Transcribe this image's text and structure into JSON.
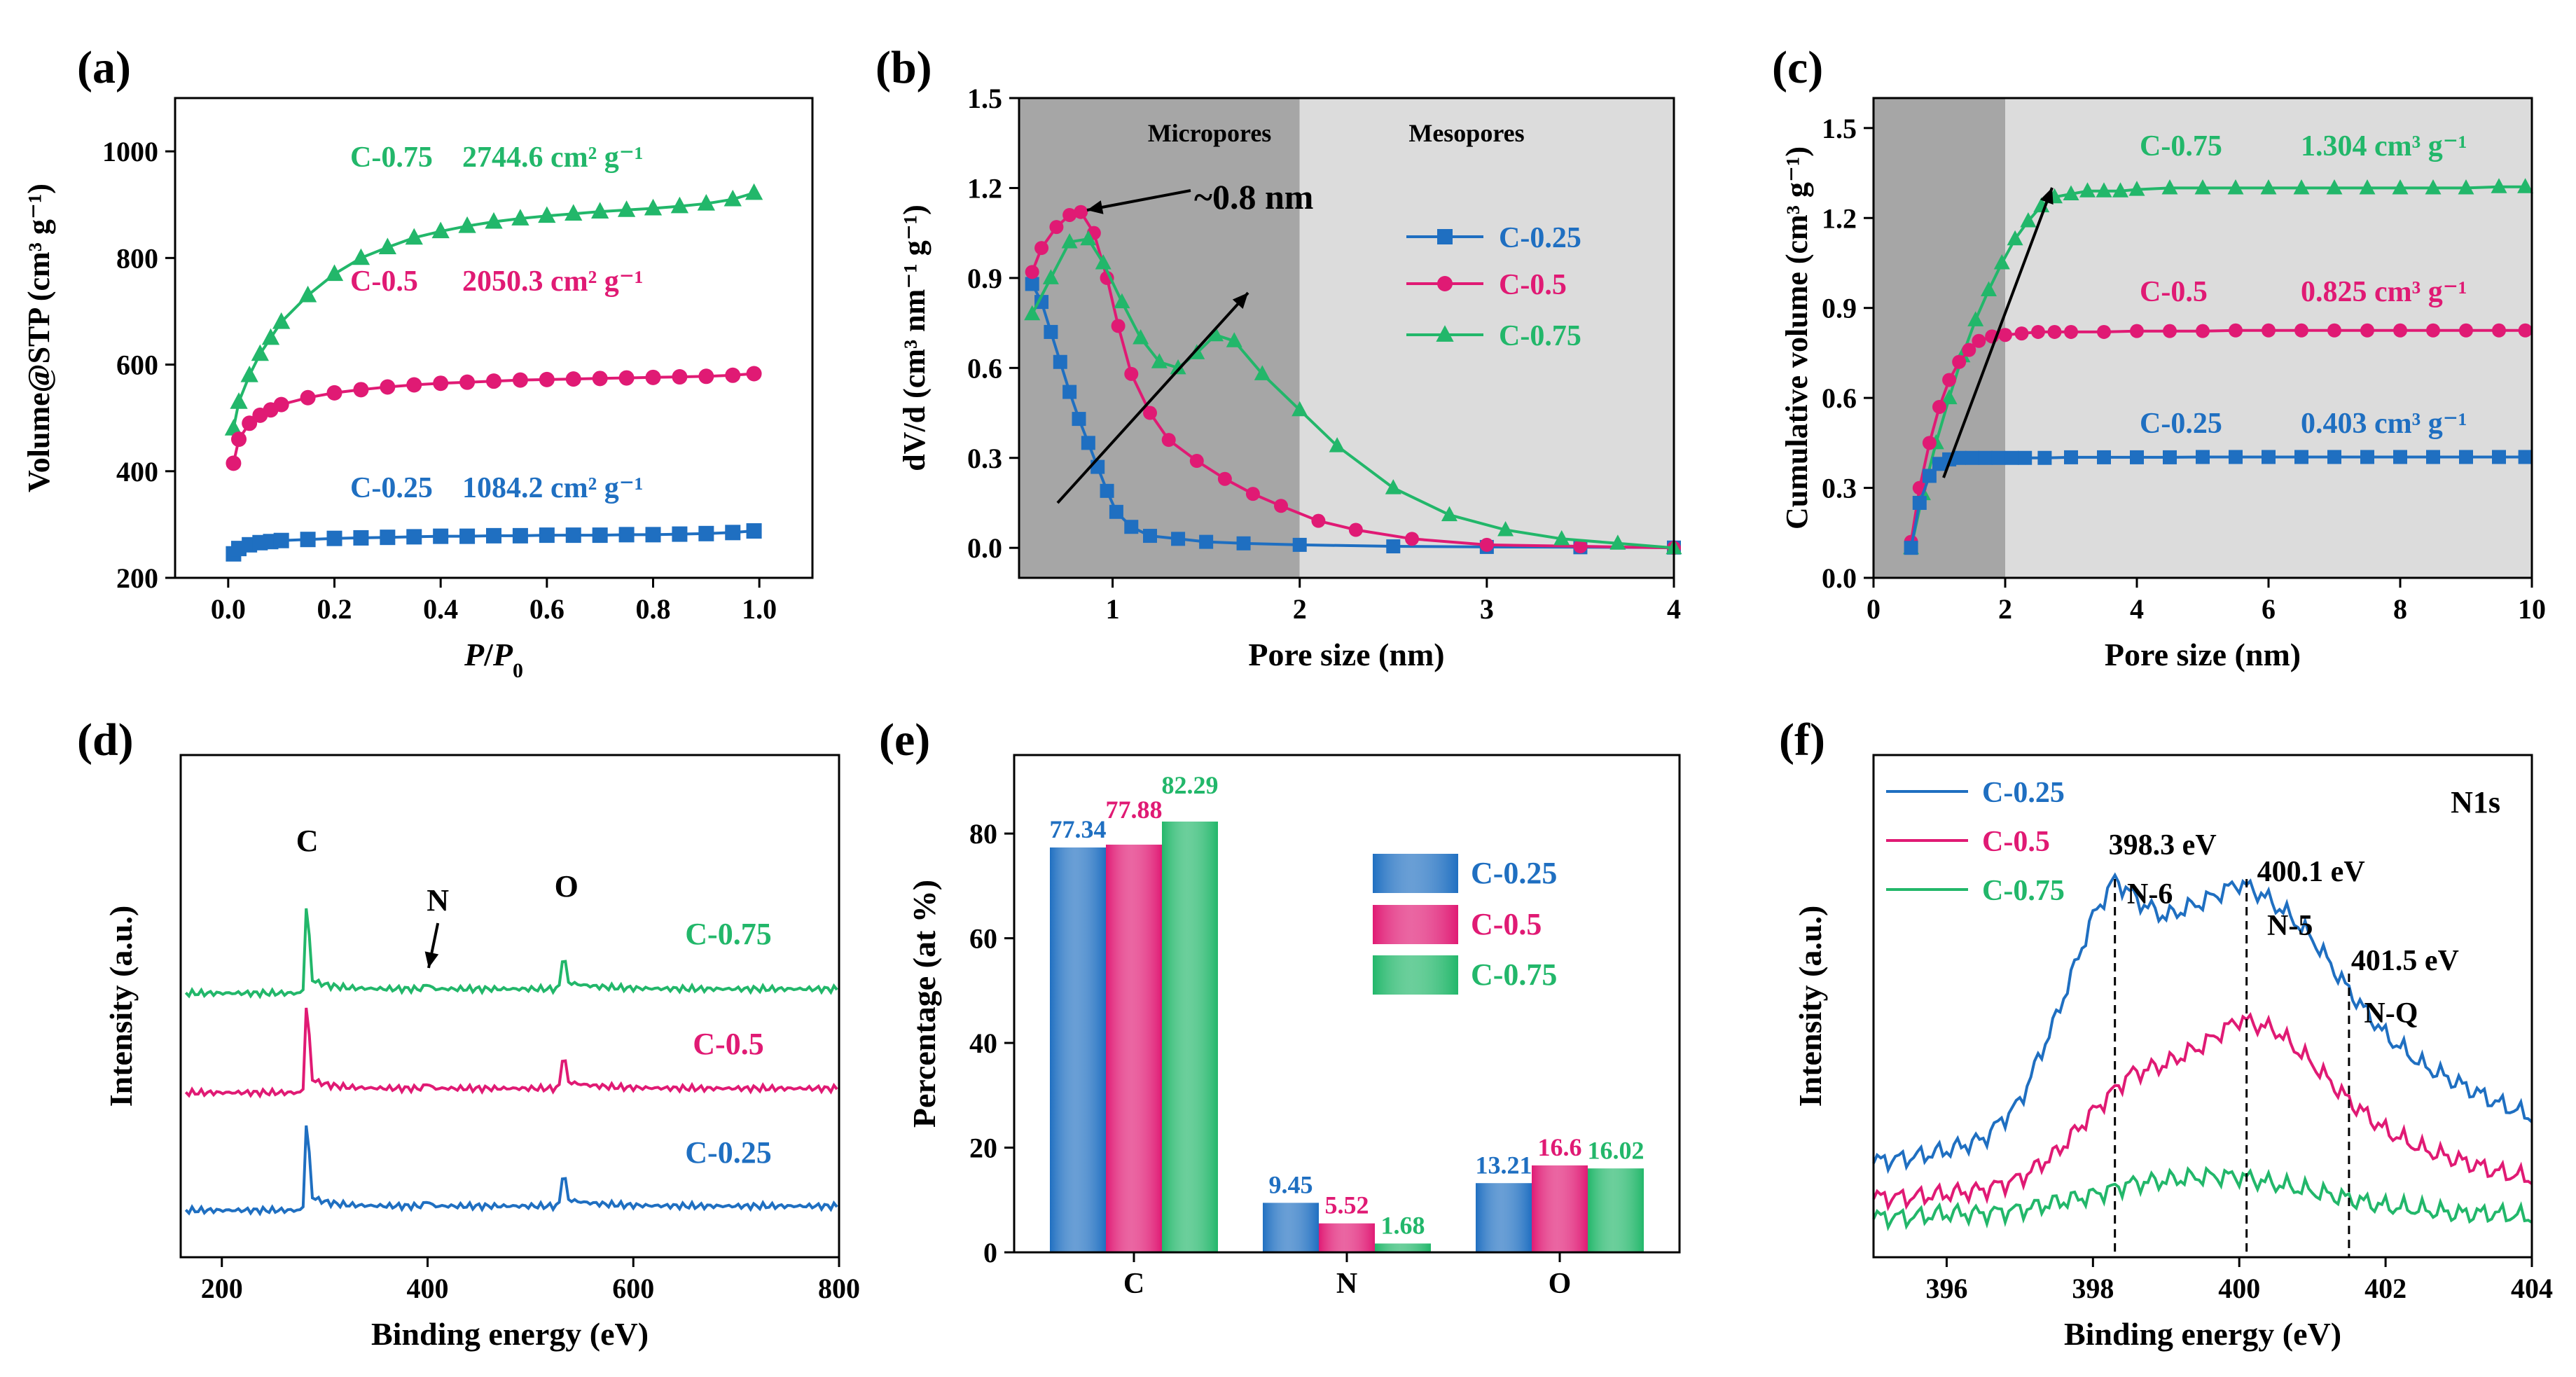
{
  "colors": {
    "c025": "#1f6fc1",
    "c05": "#e01a74",
    "c075": "#22b76a",
    "dark": "#a6a6a6",
    "light": "#dcdcdc"
  },
  "chart_data": [
    {
      "id": "a",
      "panel_label": "(a)",
      "type": "scatter",
      "xlabel_italic": "P",
      "xlabel_sep": "/",
      "xlabel_sub": "P",
      "xlabel_subscript": "0",
      "ylabel": "Volume@STP (cm³ g⁻¹)",
      "xlim": [
        -0.1,
        1.1
      ],
      "ylim": [
        200,
        1100
      ],
      "xticks": [
        0.0,
        0.2,
        0.4,
        0.6,
        0.8,
        1.0
      ],
      "xtick_labels": [
        "0.0",
        "0.2",
        "0.4",
        "0.6",
        "0.8",
        "1.0"
      ],
      "yticks": [
        200,
        400,
        600,
        800,
        1000
      ],
      "ytick_labels": [
        "200",
        "400",
        "600",
        "800",
        "1000"
      ],
      "series": [
        {
          "name": "C-0.75",
          "color_key": "c075",
          "marker": "triangle",
          "annotation_sample": "C-0.75",
          "annotation_value": "2744.6 cm² g⁻¹",
          "x": [
            0.01,
            0.02,
            0.04,
            0.06,
            0.08,
            0.1,
            0.15,
            0.2,
            0.25,
            0.3,
            0.35,
            0.4,
            0.45,
            0.5,
            0.55,
            0.6,
            0.65,
            0.7,
            0.75,
            0.8,
            0.85,
            0.9,
            0.95,
            0.99
          ],
          "y": [
            480,
            530,
            580,
            620,
            650,
            680,
            730,
            770,
            800,
            820,
            838,
            850,
            860,
            868,
            874,
            879,
            883,
            887,
            890,
            893,
            897,
            902,
            910,
            922
          ]
        },
        {
          "name": "C-0.5",
          "color_key": "c05",
          "marker": "circle",
          "annotation_sample": "C-0.5",
          "annotation_value": "2050.3 cm² g⁻¹",
          "x": [
            0.01,
            0.02,
            0.04,
            0.06,
            0.08,
            0.1,
            0.15,
            0.2,
            0.25,
            0.3,
            0.35,
            0.4,
            0.45,
            0.5,
            0.55,
            0.6,
            0.65,
            0.7,
            0.75,
            0.8,
            0.85,
            0.9,
            0.95,
            0.99
          ],
          "y": [
            415,
            460,
            490,
            505,
            515,
            525,
            538,
            547,
            553,
            558,
            562,
            565,
            567,
            569,
            571,
            572,
            573,
            574,
            575,
            576,
            577,
            578,
            580,
            583
          ]
        },
        {
          "name": "C-0.25",
          "color_key": "c025",
          "marker": "square",
          "annotation_sample": "C-0.25",
          "annotation_value": "1084.2 cm² g⁻¹",
          "x": [
            0.01,
            0.02,
            0.04,
            0.06,
            0.08,
            0.1,
            0.15,
            0.2,
            0.25,
            0.3,
            0.35,
            0.4,
            0.45,
            0.5,
            0.55,
            0.6,
            0.65,
            0.7,
            0.75,
            0.8,
            0.85,
            0.9,
            0.95,
            0.99
          ],
          "y": [
            245,
            255,
            262,
            266,
            268,
            270,
            272,
            274,
            275,
            276,
            277,
            278,
            278,
            279,
            279,
            280,
            280,
            280,
            281,
            281,
            282,
            283,
            285,
            288
          ]
        }
      ]
    },
    {
      "id": "b",
      "panel_label": "(b)",
      "type": "line",
      "xlabel": "Pore size (nm)",
      "ylabel": "dV/d (cm³ nm⁻¹ g⁻¹)",
      "xlim": [
        0.5,
        4.0
      ],
      "ylim": [
        -0.1,
        1.5
      ],
      "xticks": [
        1,
        2,
        3,
        4
      ],
      "xtick_labels": [
        "1",
        "2",
        "3",
        "4"
      ],
      "yticks": [
        0.0,
        0.3,
        0.6,
        0.9,
        1.2,
        1.5
      ],
      "ytick_labels": [
        "0.0",
        "0.3",
        "0.6",
        "0.9",
        "1.2",
        "1.5"
      ],
      "region_labels": [
        "Micropores",
        "Mesopores"
      ],
      "peak_label": "~0.8 nm",
      "legend": [
        "C-0.25",
        "C-0.5",
        "C-0.75"
      ],
      "series": [
        {
          "name": "C-0.25",
          "color_key": "c025",
          "marker": "square",
          "x": [
            0.57,
            0.62,
            0.67,
            0.72,
            0.77,
            0.82,
            0.87,
            0.92,
            0.97,
            1.02,
            1.1,
            1.2,
            1.35,
            1.5,
            1.7,
            2.0,
            2.5,
            3.0,
            3.5,
            4.0
          ],
          "y": [
            0.88,
            0.82,
            0.72,
            0.62,
            0.52,
            0.43,
            0.35,
            0.27,
            0.19,
            0.12,
            0.07,
            0.04,
            0.03,
            0.02,
            0.015,
            0.01,
            0.005,
            0.003,
            0.002,
            0.001
          ]
        },
        {
          "name": "C-0.5",
          "color_key": "c05",
          "marker": "circle",
          "x": [
            0.57,
            0.62,
            0.7,
            0.77,
            0.83,
            0.9,
            0.97,
            1.03,
            1.1,
            1.2,
            1.3,
            1.45,
            1.6,
            1.75,
            1.9,
            2.1,
            2.3,
            2.6,
            3.0,
            3.5,
            4.0
          ],
          "y": [
            0.92,
            1.0,
            1.07,
            1.11,
            1.12,
            1.05,
            0.9,
            0.74,
            0.58,
            0.45,
            0.36,
            0.29,
            0.23,
            0.18,
            0.14,
            0.09,
            0.06,
            0.03,
            0.01,
            0.005,
            0.0
          ]
        },
        {
          "name": "C-0.75",
          "color_key": "c075",
          "marker": "triangle",
          "x": [
            0.57,
            0.67,
            0.77,
            0.87,
            0.95,
            1.05,
            1.15,
            1.25,
            1.35,
            1.45,
            1.55,
            1.65,
            1.8,
            2.0,
            2.2,
            2.5,
            2.8,
            3.1,
            3.4,
            3.7,
            4.0
          ],
          "y": [
            0.78,
            0.9,
            1.02,
            1.03,
            0.95,
            0.82,
            0.7,
            0.62,
            0.6,
            0.65,
            0.71,
            0.69,
            0.58,
            0.46,
            0.34,
            0.2,
            0.11,
            0.06,
            0.03,
            0.015,
            0.0
          ]
        }
      ]
    },
    {
      "id": "c",
      "panel_label": "(c)",
      "type": "line",
      "xlabel": "Pore size (nm)",
      "ylabel": "Cumulative volume (cm³ g⁻¹)",
      "xlim": [
        0,
        10
      ],
      "ylim": [
        0.0,
        1.6
      ],
      "xticks": [
        0,
        2,
        4,
        6,
        8,
        10
      ],
      "xtick_labels": [
        "0",
        "2",
        "4",
        "6",
        "8",
        "10"
      ],
      "yticks": [
        0.0,
        0.3,
        0.6,
        0.9,
        1.2,
        1.5
      ],
      "ytick_labels": [
        "0.0",
        "0.3",
        "0.6",
        "0.9",
        "1.2",
        "1.5"
      ],
      "series": [
        {
          "name": "C-0.75",
          "color_key": "c075",
          "marker": "triangle",
          "annotation_sample": "C-0.75",
          "annotation_value": "1.304 cm³ g⁻¹",
          "x": [
            0.57,
            0.75,
            0.95,
            1.15,
            1.35,
            1.55,
            1.75,
            1.95,
            2.15,
            2.35,
            2.55,
            2.75,
            3.0,
            3.25,
            3.5,
            3.75,
            4.0,
            4.5,
            5.0,
            5.5,
            6.0,
            6.5,
            7.0,
            7.5,
            8.0,
            8.5,
            9.0,
            9.5,
            9.9
          ],
          "y": [
            0.1,
            0.28,
            0.45,
            0.6,
            0.74,
            0.86,
            0.96,
            1.05,
            1.13,
            1.19,
            1.24,
            1.27,
            1.28,
            1.29,
            1.29,
            1.29,
            1.295,
            1.3,
            1.3,
            1.3,
            1.3,
            1.3,
            1.3,
            1.3,
            1.3,
            1.3,
            1.3,
            1.304,
            1.304
          ]
        },
        {
          "name": "C-0.5",
          "color_key": "c05",
          "marker": "circle",
          "annotation_sample": "C-0.5",
          "annotation_value": "0.825 cm³ g⁻¹",
          "x": [
            0.57,
            0.7,
            0.85,
            1.0,
            1.15,
            1.3,
            1.45,
            1.6,
            1.8,
            2.0,
            2.25,
            2.5,
            2.75,
            3.0,
            3.5,
            4.0,
            4.5,
            5.0,
            5.5,
            6.0,
            6.5,
            7.0,
            7.5,
            8.0,
            8.5,
            9.0,
            9.5,
            9.9
          ],
          "y": [
            0.12,
            0.3,
            0.45,
            0.57,
            0.66,
            0.72,
            0.76,
            0.79,
            0.805,
            0.81,
            0.815,
            0.82,
            0.82,
            0.82,
            0.82,
            0.823,
            0.823,
            0.823,
            0.825,
            0.825,
            0.825,
            0.825,
            0.825,
            0.825,
            0.825,
            0.825,
            0.825,
            0.825
          ]
        },
        {
          "name": "C-0.25",
          "color_key": "c025",
          "marker": "square",
          "annotation_sample": "C-0.25",
          "annotation_value": "0.403 cm³ g⁻¹",
          "x": [
            0.57,
            0.7,
            0.85,
            1.0,
            1.15,
            1.3,
            1.5,
            1.7,
            1.9,
            2.1,
            2.3,
            2.6,
            3.0,
            3.5,
            4.0,
            4.5,
            5.0,
            5.5,
            6.0,
            6.5,
            7.0,
            7.5,
            8.0,
            8.5,
            9.0,
            9.5,
            9.9
          ],
          "y": [
            0.1,
            0.25,
            0.34,
            0.38,
            0.395,
            0.4,
            0.4,
            0.4,
            0.4,
            0.4,
            0.4,
            0.4,
            0.402,
            0.402,
            0.402,
            0.402,
            0.403,
            0.403,
            0.403,
            0.403,
            0.403,
            0.403,
            0.403,
            0.403,
            0.403,
            0.403,
            0.403
          ]
        }
      ]
    },
    {
      "id": "d",
      "panel_label": "(d)",
      "type": "line",
      "xlabel": "Binding energy (eV)",
      "ylabel": "Intensity (a.u.)",
      "xlim": [
        160,
        800
      ],
      "xticks": [
        200,
        400,
        600,
        800
      ],
      "xtick_labels": [
        "200",
        "400",
        "600",
        "800"
      ],
      "peak_labels": [
        "C",
        "N",
        "O"
      ],
      "series": [
        {
          "name": "C-0.75",
          "color_key": "c075",
          "label": "C-0.75"
        },
        {
          "name": "C-0.5",
          "color_key": "c05",
          "label": "C-0.5"
        },
        {
          "name": "C-0.25",
          "color_key": "c025",
          "label": "C-0.25"
        }
      ]
    },
    {
      "id": "e",
      "panel_label": "(e)",
      "type": "bar",
      "xlabel": "",
      "ylabel": "Percentage (at %)",
      "categories": [
        "C",
        "N",
        "O"
      ],
      "ylim": [
        0,
        95
      ],
      "yticks": [
        0,
        20,
        40,
        60,
        80
      ],
      "ytick_labels": [
        "0",
        "20",
        "40",
        "60",
        "80"
      ],
      "series": [
        {
          "name": "C-0.25",
          "color_key": "c025",
          "values": [
            77.34,
            9.45,
            13.21
          ],
          "labels": [
            "77.34",
            "9.45",
            "13.21"
          ]
        },
        {
          "name": "C-0.5",
          "color_key": "c05",
          "values": [
            77.88,
            5.52,
            16.6
          ],
          "labels": [
            "77.88",
            "5.52",
            "16.6"
          ]
        },
        {
          "name": "C-0.75",
          "color_key": "c075",
          "values": [
            82.29,
            1.68,
            16.02
          ],
          "labels": [
            "82.29",
            "1.68",
            "16.02"
          ]
        }
      ]
    },
    {
      "id": "f",
      "panel_label": "(f)",
      "type": "line",
      "xlabel": "Binding energy (eV)",
      "ylabel": "Intensity (a.u.)",
      "title": "N1s",
      "xlim": [
        395,
        404
      ],
      "xticks": [
        396,
        398,
        400,
        402,
        404
      ],
      "xtick_labels": [
        "396",
        "398",
        "400",
        "402",
        "404"
      ],
      "legend": [
        "C-0.25",
        "C-0.5",
        "C-0.75"
      ],
      "peaks": [
        {
          "x": 398.3,
          "energy": "398.3 eV",
          "name": "N-6"
        },
        {
          "x": 400.1,
          "energy": "400.1 eV",
          "name": "N-5"
        },
        {
          "x": 401.5,
          "energy": "401.5 eV",
          "name": "N-Q"
        }
      ],
      "series": [
        {
          "name": "C-0.25",
          "color_key": "c025",
          "x": [
            395,
            395.5,
            396,
            396.5,
            397,
            397.5,
            398,
            398.3,
            398.7,
            399,
            399.5,
            400,
            400.3,
            400.7,
            401,
            401.5,
            402,
            402.5,
            403,
            403.5,
            404
          ],
          "y": [
            0.06,
            0.07,
            0.09,
            0.12,
            0.22,
            0.45,
            0.72,
            0.82,
            0.75,
            0.72,
            0.76,
            0.81,
            0.78,
            0.72,
            0.66,
            0.52,
            0.4,
            0.32,
            0.27,
            0.22,
            0.18
          ]
        },
        {
          "name": "C-0.5",
          "color_key": "c05",
          "x": [
            395,
            395.5,
            396,
            396.5,
            397,
            397.5,
            398,
            398.5,
            399,
            399.5,
            400,
            400.5,
            401,
            401.5,
            402,
            402.5,
            403,
            403.5,
            404
          ],
          "y": [
            0.02,
            0.02,
            0.03,
            0.04,
            0.07,
            0.14,
            0.25,
            0.35,
            0.38,
            0.43,
            0.5,
            0.47,
            0.38,
            0.28,
            0.2,
            0.15,
            0.12,
            0.09,
            0.07
          ]
        },
        {
          "name": "C-0.75",
          "color_key": "c075",
          "x": [
            395,
            395.5,
            396,
            396.5,
            397,
            397.5,
            398,
            398.5,
            399,
            399.5,
            400,
            400.5,
            401,
            401.5,
            402,
            402.5,
            403,
            403.5,
            404
          ],
          "y": [
            -0.03,
            -0.03,
            -0.02,
            -0.02,
            -0.01,
            0.01,
            0.03,
            0.06,
            0.07,
            0.08,
            0.08,
            0.06,
            0.04,
            0.02,
            0.0,
            -0.01,
            -0.02,
            -0.02,
            -0.03
          ]
        }
      ]
    }
  ]
}
